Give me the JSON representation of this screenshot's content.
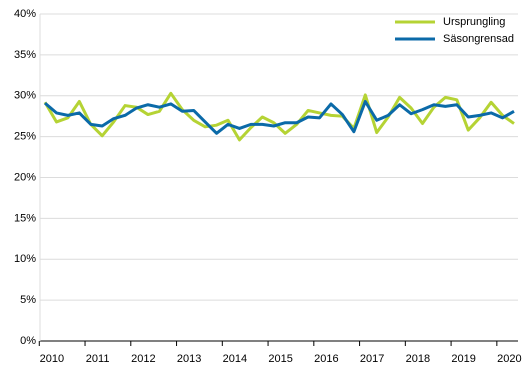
{
  "chart_data": {
    "type": "line",
    "categories": [
      "2010",
      null,
      null,
      null,
      "2011",
      null,
      null,
      null,
      "2012",
      null,
      null,
      null,
      "2013",
      null,
      null,
      null,
      "2014",
      null,
      null,
      null,
      "2015",
      null,
      null,
      null,
      "2016",
      null,
      null,
      null,
      "2017",
      null,
      null,
      null,
      "2018",
      null,
      null,
      null,
      "2019",
      null,
      null,
      null,
      "2020",
      null
    ],
    "series": [
      {
        "name": "Ursprungling",
        "color": "#b5d334",
        "values": [
          29.2,
          26.8,
          27.3,
          29.3,
          26.5,
          25.1,
          26.8,
          28.8,
          28.6,
          27.7,
          28.1,
          30.3,
          28.3,
          27.0,
          26.2,
          26.4,
          27.0,
          24.6,
          26.1,
          27.4,
          26.7,
          25.4,
          26.5,
          28.2,
          27.9,
          27.6,
          27.5,
          26.0,
          30.1,
          25.5,
          27.4,
          29.8,
          28.5,
          26.6,
          28.6,
          29.8,
          29.5,
          25.8,
          27.3,
          29.2,
          27.6,
          26.6
        ]
      },
      {
        "name": "Säsongrensad",
        "color": "#0b6aa8",
        "values": [
          29.1,
          27.9,
          27.6,
          27.9,
          26.5,
          26.3,
          27.2,
          27.6,
          28.5,
          28.9,
          28.6,
          29.0,
          28.1,
          28.2,
          26.8,
          25.4,
          26.5,
          26.0,
          26.5,
          26.5,
          26.3,
          26.7,
          26.7,
          27.4,
          27.3,
          29.0,
          27.7,
          25.6,
          29.3,
          27.0,
          27.6,
          28.9,
          27.8,
          28.3,
          28.9,
          28.7,
          28.9,
          27.4,
          27.6,
          27.9,
          27.3,
          28.1
        ]
      }
    ],
    "ylim": [
      0,
      40
    ],
    "yticks": [
      {
        "value": 0,
        "label": "0%"
      },
      {
        "value": 5,
        "label": "5%"
      },
      {
        "value": 10,
        "label": "10%"
      },
      {
        "value": 15,
        "label": "15%"
      },
      {
        "value": 20,
        "label": "20%"
      },
      {
        "value": 25,
        "label": "25%"
      },
      {
        "value": 30,
        "label": "30%"
      },
      {
        "value": 35,
        "label": "35%"
      },
      {
        "value": 40,
        "label": "40%"
      }
    ],
    "grid": true,
    "legend": "top-right"
  }
}
